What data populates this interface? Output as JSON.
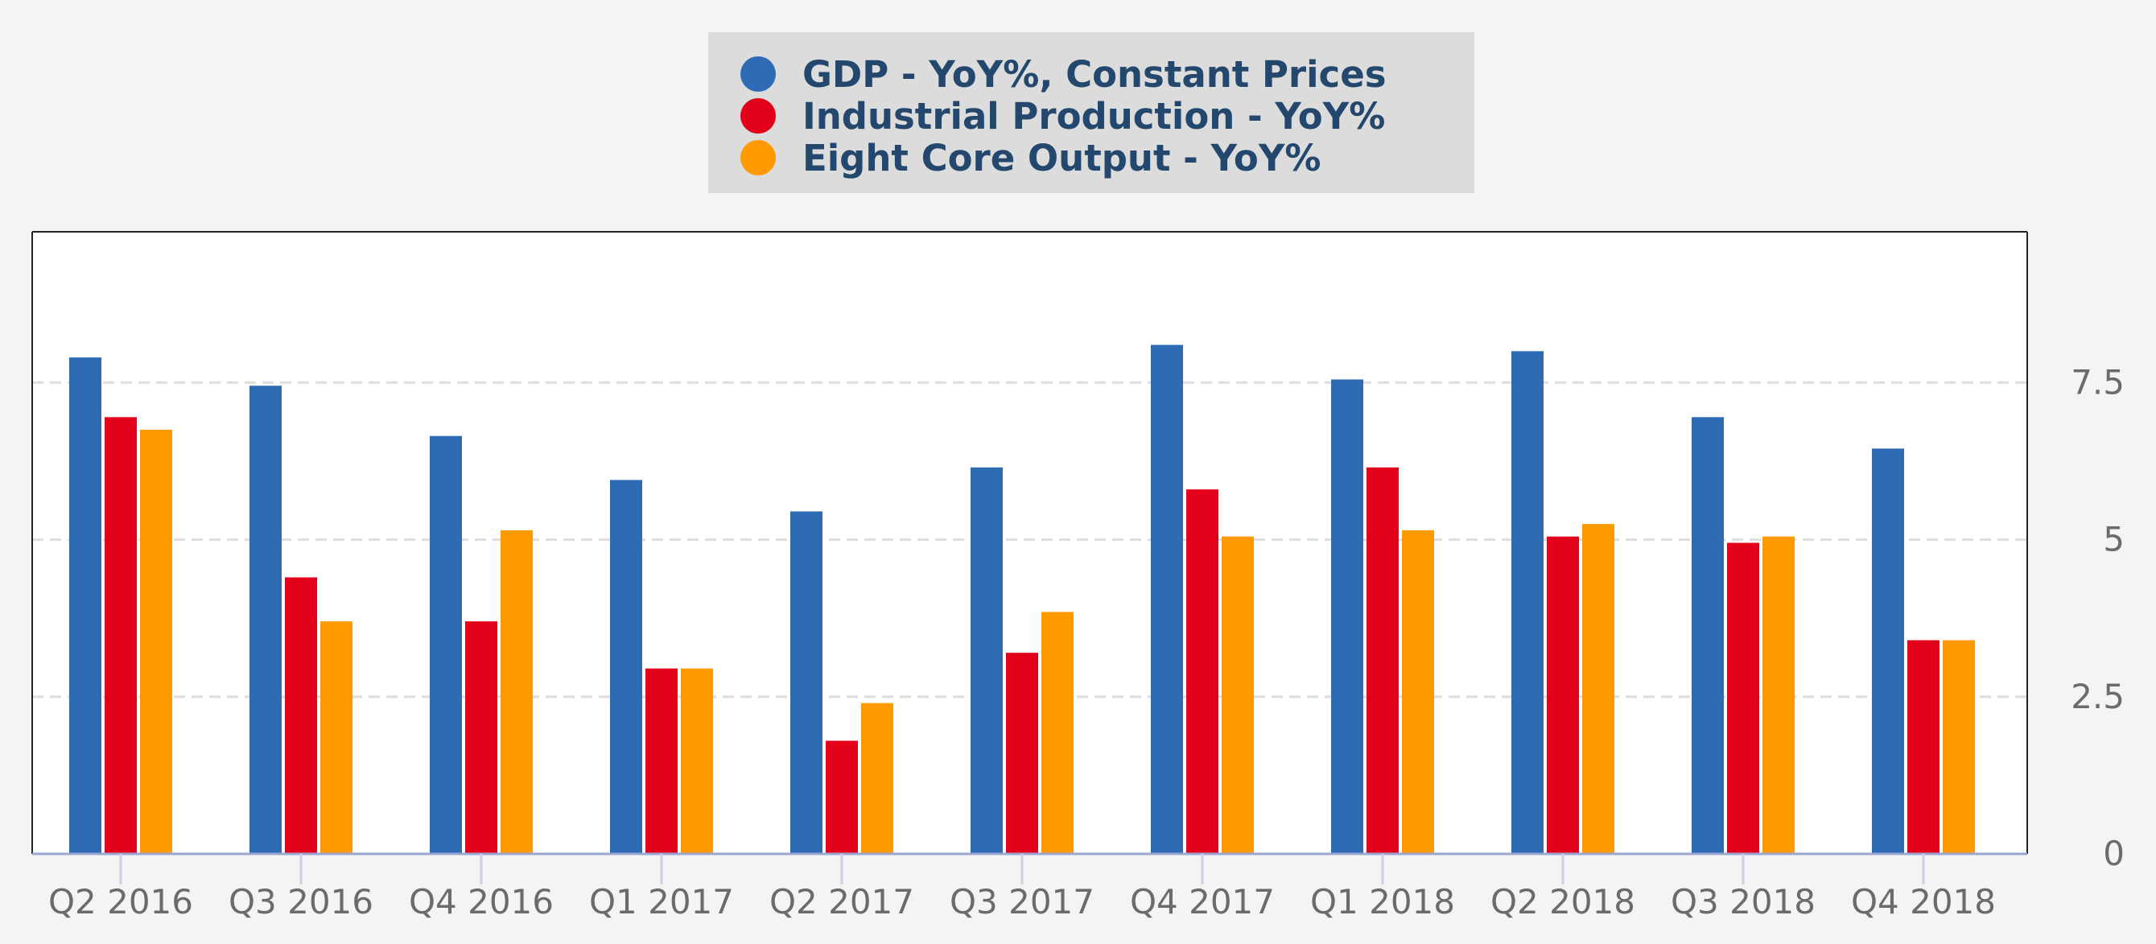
{
  "chart_data": {
    "type": "bar",
    "categories": [
      "Q2 2016",
      "Q3 2016",
      "Q4 2016",
      "Q1 2017",
      "Q2 2017",
      "Q3 2017",
      "Q4 2017",
      "Q1 2018",
      "Q2 2018",
      "Q3 2018",
      "Q4 2018"
    ],
    "series": [
      {
        "name": "GDP - YoY%, Constant Prices",
        "color": "#2e6bb5",
        "values": [
          7.9,
          7.45,
          6.65,
          5.95,
          5.45,
          6.15,
          8.1,
          7.55,
          8.0,
          6.95,
          6.45
        ]
      },
      {
        "name": "Industrial Production - YoY%",
        "color": "#e2001a",
        "values": [
          6.95,
          4.4,
          3.7,
          2.95,
          1.8,
          3.2,
          5.8,
          6.15,
          5.05,
          4.95,
          3.4
        ]
      },
      {
        "name": "Eight Core Output - YoY%",
        "color": "#ff9a00",
        "values": [
          6.75,
          3.7,
          5.15,
          2.95,
          2.4,
          3.85,
          5.05,
          5.15,
          5.25,
          5.05,
          3.4
        ]
      }
    ],
    "y_ticks": [
      "0",
      "2.5",
      "5",
      "7.5"
    ],
    "ylim": [
      0,
      9.9
    ],
    "y_axis_position": "right",
    "grid": true,
    "legend_position": "top-center"
  }
}
